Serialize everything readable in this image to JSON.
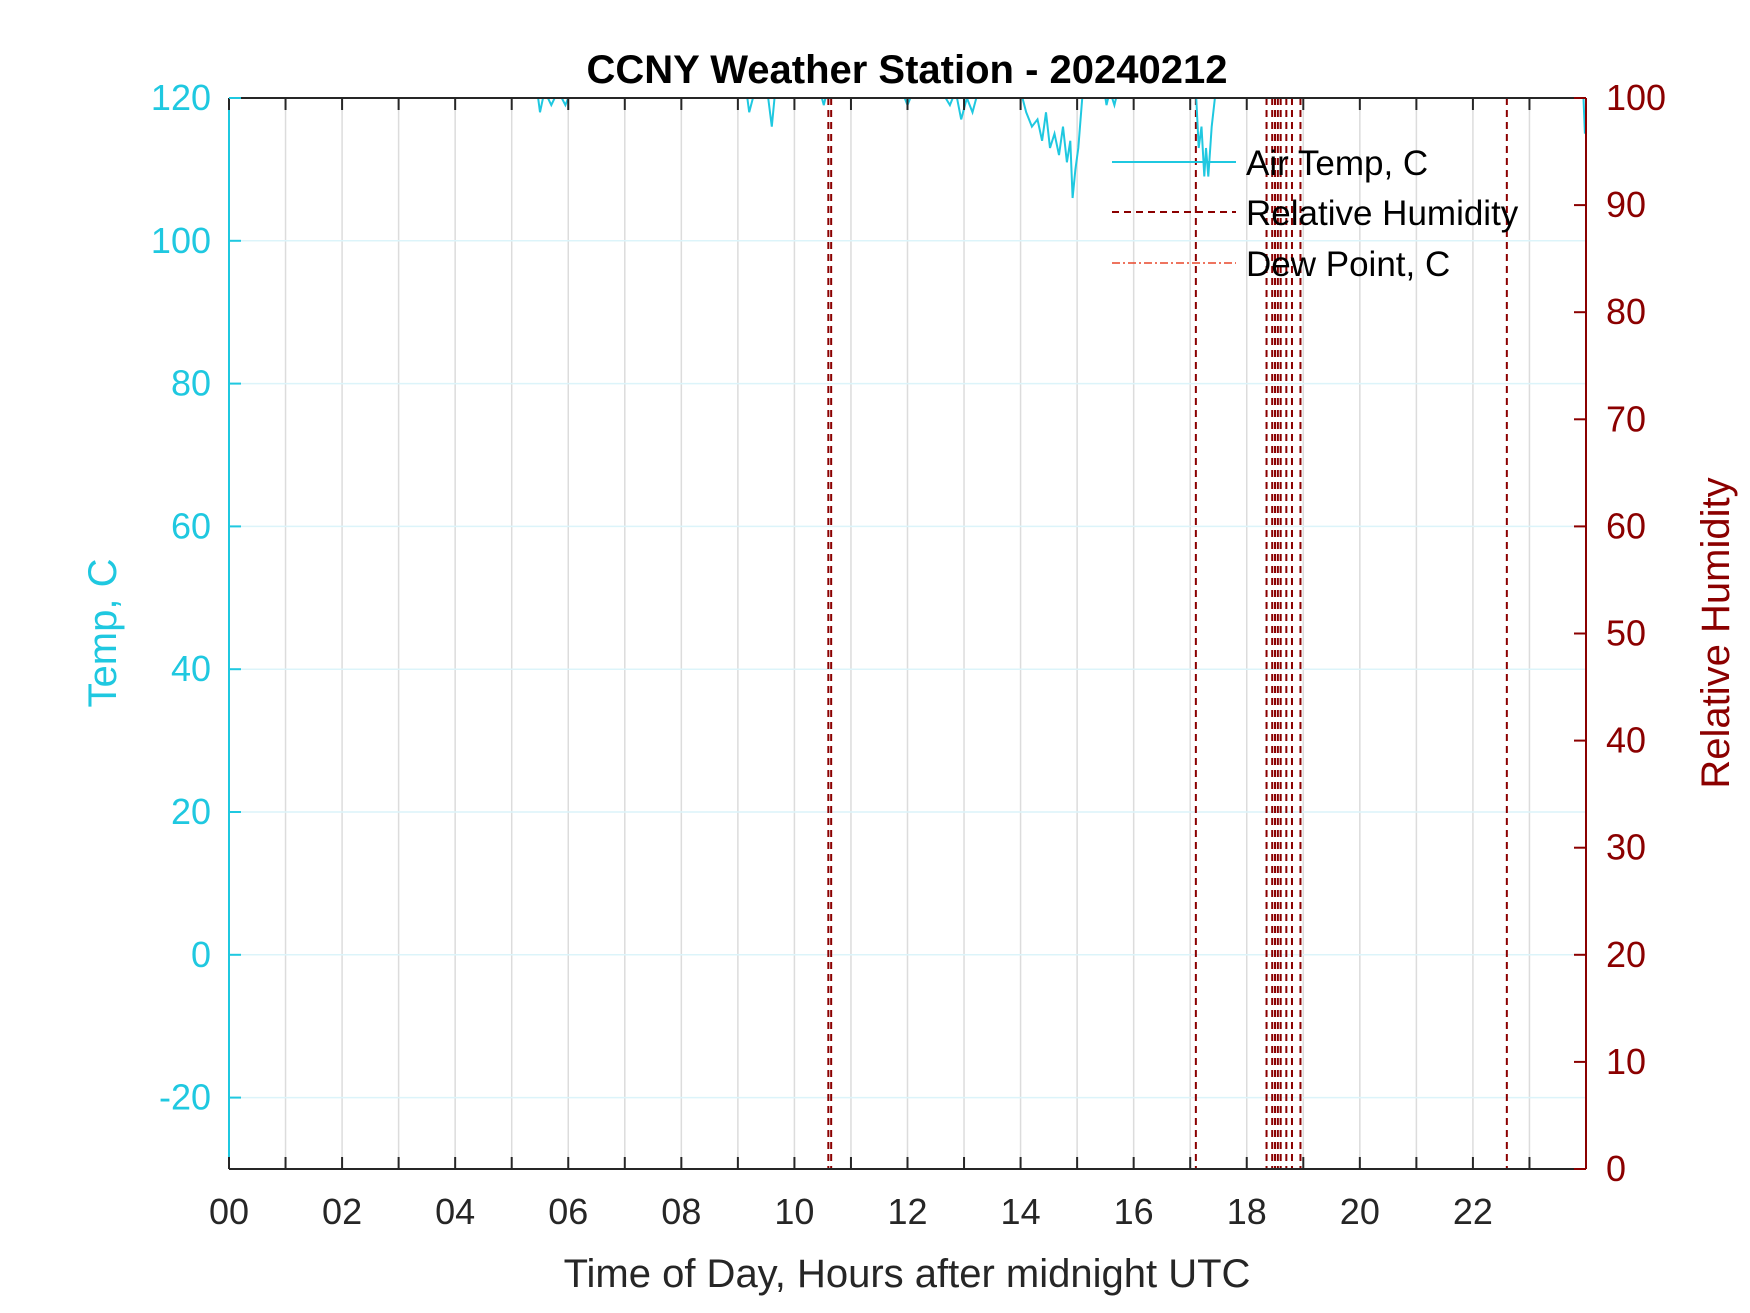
{
  "chart_data": {
    "type": "line",
    "title": "CCNY Weather Station - 20240212",
    "xlabel": "Time of Day, Hours after midnight UTC",
    "ylabel_left": "Temp, C",
    "ylabel_right": "Relative Humidity",
    "xlim": [
      0,
      24
    ],
    "ylim_left": [
      -30,
      120
    ],
    "ylim_right": [
      0,
      100
    ],
    "x_ticks": [
      0,
      2,
      4,
      6,
      8,
      10,
      12,
      14,
      16,
      18,
      20,
      22
    ],
    "x_tick_labels": [
      "00",
      "02",
      "04",
      "06",
      "08",
      "10",
      "12",
      "14",
      "16",
      "18",
      "20",
      "22"
    ],
    "x_grid": [
      1,
      2,
      3,
      4,
      5,
      6,
      7,
      8,
      9,
      10,
      11,
      12,
      13,
      14,
      15,
      16,
      17,
      18,
      19,
      20,
      21,
      22,
      23
    ],
    "y_ticks_left": [
      -20,
      0,
      20,
      40,
      60,
      80,
      100,
      120
    ],
    "y_tick_labels_left": [
      "-20",
      "0",
      "20",
      "40",
      "60",
      "80",
      "100",
      "120"
    ],
    "y_ticks_right": [
      0,
      10,
      20,
      30,
      40,
      50,
      60,
      70,
      80,
      90,
      100
    ],
    "y_tick_labels_right": [
      "0",
      "10",
      "20",
      "30",
      "40",
      "50",
      "60",
      "70",
      "80",
      "90",
      "100"
    ],
    "grid": true,
    "legend_position": "top-right",
    "colors": {
      "temp": "#1fc8e0",
      "rh": "#8b0000",
      "dew": "#e8462a",
      "grid_x": "#dcdcdc",
      "grid_y": "#dcf4fa",
      "axis": "#262626"
    },
    "series": [
      {
        "name": "Air Temp, C",
        "axis": "left",
        "style": "solid",
        "x": [
          5.3,
          5.45,
          5.5,
          5.58,
          5.7,
          5.82,
          5.95,
          6.05,
          9.15,
          9.2,
          9.3,
          9.52,
          9.6,
          9.66,
          9.72,
          10.45,
          10.52,
          10.58,
          11.9,
          12.0,
          12.1,
          12.25,
          12.6,
          12.75,
          12.85,
          12.95,
          13.05,
          13.15,
          13.25,
          14.0,
          14.1,
          14.2,
          14.3,
          14.38,
          14.45,
          14.52,
          14.6,
          14.68,
          14.75,
          14.82,
          14.88,
          14.92,
          14.97,
          15.02,
          15.1,
          15.2,
          15.48,
          15.52,
          15.58,
          15.66,
          15.72,
          17.1,
          17.15,
          17.2,
          17.25,
          17.28,
          17.32,
          17.38,
          17.45,
          23.95,
          23.98
        ],
        "y": [
          121,
          121,
          118,
          121,
          119,
          121,
          119,
          121,
          121,
          118,
          121,
          121,
          116,
          121,
          121,
          121,
          119,
          121,
          121,
          119,
          121,
          120,
          121,
          119,
          121,
          117,
          120,
          118,
          121,
          121,
          118,
          116,
          117,
          114,
          118,
          113,
          115,
          112,
          116,
          111,
          114,
          106,
          110,
          113,
          121,
          121,
          121,
          119,
          121,
          119,
          121,
          121,
          113,
          116,
          109,
          113,
          109,
          116,
          121,
          121,
          115
        ]
      },
      {
        "name": "Relative Humidity",
        "axis": "right",
        "style": "dashed",
        "vlines": [
          10.6,
          10.65,
          17.1,
          18.35,
          18.45,
          18.5,
          18.55,
          18.6,
          18.7,
          18.8,
          18.95,
          22.6
        ]
      },
      {
        "name": "Dew Point, C",
        "axis": "left",
        "style": "dash-dot",
        "vlines": []
      }
    ]
  }
}
